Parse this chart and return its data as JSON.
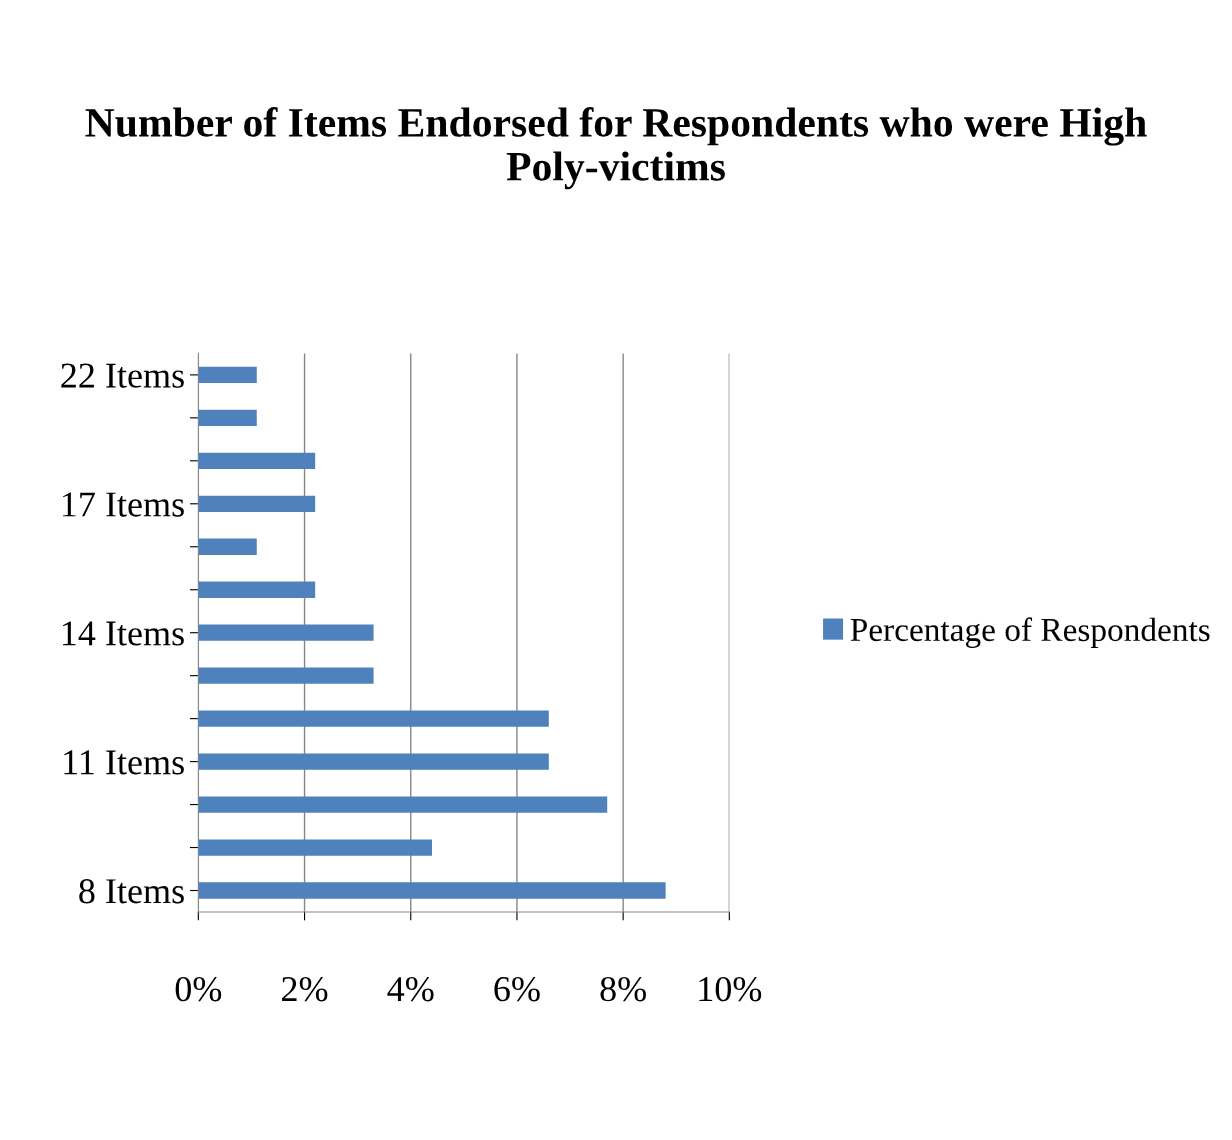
{
  "chart_data": {
    "type": "bar",
    "orientation": "horizontal",
    "title": "Number of Items Endorsed for Respondents who were High Poly-victims",
    "categories": [
      "22 Items",
      null,
      null,
      "17 Items",
      null,
      null,
      "14 Items",
      null,
      null,
      "11 Items",
      null,
      null,
      "8 Items"
    ],
    "series": [
      {
        "name": "Percentage of Respondents",
        "color": "#4f81bd",
        "values": [
          1.1,
          1.1,
          2.2,
          2.2,
          1.1,
          2.2,
          3.3,
          3.3,
          6.6,
          6.6,
          7.7,
          4.4,
          8.8
        ]
      }
    ],
    "xlim": [
      0,
      10
    ],
    "xticks": [
      {
        "value": 0,
        "label": "0%"
      },
      {
        "value": 2,
        "label": "2%"
      },
      {
        "value": 4,
        "label": "4%"
      },
      {
        "value": 6,
        "label": "6%"
      },
      {
        "value": 8,
        "label": "8%"
      },
      {
        "value": 10,
        "label": "10%"
      }
    ],
    "grid": "x",
    "legend": "right"
  }
}
